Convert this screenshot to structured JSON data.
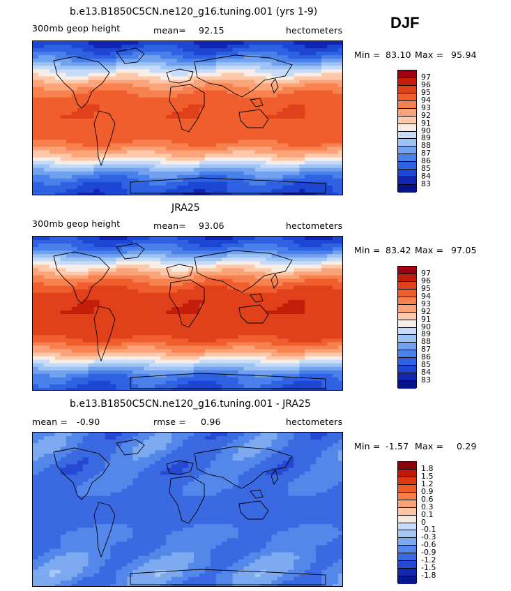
{
  "season": "DJF",
  "chart_data": [
    {
      "type": "heatmap",
      "title": "b.e13.B1850C5CN.ne120_g16.tuning.001 (yrs 1-9)",
      "variable": "300mb geop height",
      "stat_label": "mean=",
      "stat_value": "92.15",
      "units": "hectometers",
      "min_label": "Min =",
      "min": "83.10",
      "max_label": "Max =",
      "max": "95.94",
      "levels": [
        "97",
        "96",
        "95",
        "94",
        "93",
        "92",
        "91",
        "90",
        "89",
        "88",
        "87",
        "86",
        "85",
        "84",
        "83"
      ],
      "colors": [
        "#a0000f",
        "#c41e0a",
        "#e0401a",
        "#f05e2e",
        "#f7814f",
        "#fba47a",
        "#fdc9a8",
        "#f7eee8",
        "#c6dbf7",
        "#9ec3f5",
        "#72a2ef",
        "#4a80ea",
        "#2f62e3",
        "#1d46d4",
        "#1026b3",
        "#06128c"
      ],
      "zonal_profile": [
        84,
        86,
        89,
        92,
        94,
        94.8,
        95,
        94.8,
        94,
        91.5,
        88,
        85.5,
        84.5
      ]
    },
    {
      "type": "heatmap",
      "title": "JRA25",
      "variable": "300mb geop height",
      "stat_label": "mean=",
      "stat_value": "93.06",
      "units": "hectometers",
      "min_label": "Min =",
      "min": "83.42",
      "max_label": "Max =",
      "max": "97.05",
      "levels": [
        "97",
        "96",
        "95",
        "94",
        "93",
        "92",
        "91",
        "90",
        "89",
        "88",
        "87",
        "86",
        "85",
        "84",
        "83"
      ],
      "colors": [
        "#a0000f",
        "#c41e0a",
        "#e0401a",
        "#f05e2e",
        "#f7814f",
        "#fba47a",
        "#fdc9a8",
        "#f7eee8",
        "#c6dbf7",
        "#9ec3f5",
        "#72a2ef",
        "#4a80ea",
        "#2f62e3",
        "#1d46d4",
        "#1026b3",
        "#06128c"
      ],
      "zonal_profile": [
        84.5,
        86.5,
        90,
        93,
        95,
        95.8,
        96,
        95.8,
        95,
        92.5,
        89,
        86,
        85
      ]
    },
    {
      "type": "heatmap",
      "title": "b.e13.B1850C5CN.ne120_g16.tuning.001 - JRA25",
      "stat_label": "mean =",
      "stat_value": "-0.90",
      "stat2_label": "rmse =",
      "stat2_value": "0.96",
      "units": "hectometers",
      "min_label": "Min =",
      "min": "-1.57",
      "max_label": "Max =",
      "max": "0.29",
      "levels": [
        "1.8",
        "1.5",
        "1.2",
        "0.9",
        "0.6",
        "0.3",
        "0.1",
        "0",
        "-0.1",
        "-0.3",
        "-0.6",
        "-0.9",
        "-1.2",
        "-1.5",
        "-1.8"
      ],
      "colors": [
        "#8c000a",
        "#bf1808",
        "#dd3a14",
        "#ee5c28",
        "#f7804a",
        "#fba376",
        "#fcc6a4",
        "#f7e8de",
        "#c6dbf7",
        "#a6c6f4",
        "#7da9f0",
        "#5487ea",
        "#3a69e2",
        "#2549d2",
        "#1229b0",
        "#0a1590"
      ],
      "zonal_profile": [
        -0.9,
        -0.8,
        -0.9,
        -1.0,
        -0.9,
        -1.0,
        -1.1,
        -1.0,
        -0.8,
        -0.9,
        -0.7,
        -0.6,
        -0.8
      ]
    }
  ]
}
